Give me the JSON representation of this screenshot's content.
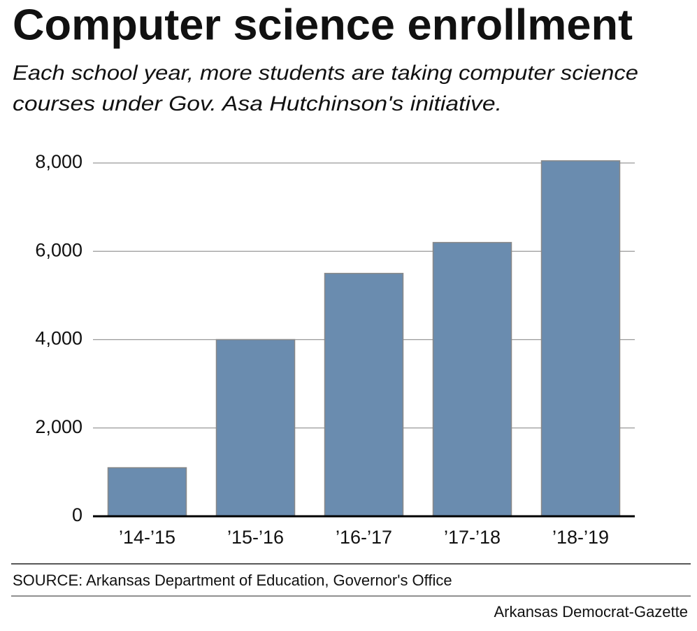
{
  "chart_data": {
    "type": "bar",
    "title": "Computer science enrollment",
    "subtitle": [
      "Each school year, more students are taking computer science",
      "courses under Gov. Asa Hutchinson's initiative."
    ],
    "categories": [
      "’14-’15",
      "’15-’16",
      "’16-’17",
      "’17-’18",
      "’18-’19"
    ],
    "values": [
      1100,
      4000,
      5500,
      6200,
      8050
    ],
    "color": "#6a8caf",
    "ylim": [
      0,
      8000
    ],
    "yticks": [
      0,
      {
        "value": 2000,
        "label": "2,000"
      },
      {
        "value": 4000,
        "label": "4,000"
      },
      {
        "value": 6000,
        "label": "6,000"
      },
      {
        "value": 8000,
        "label": "8,000"
      }
    ],
    "grid": true,
    "source": "SOURCE: Arkansas Department of Education, Governor's Office",
    "credit": "Arkansas Democrat-Gazette"
  }
}
